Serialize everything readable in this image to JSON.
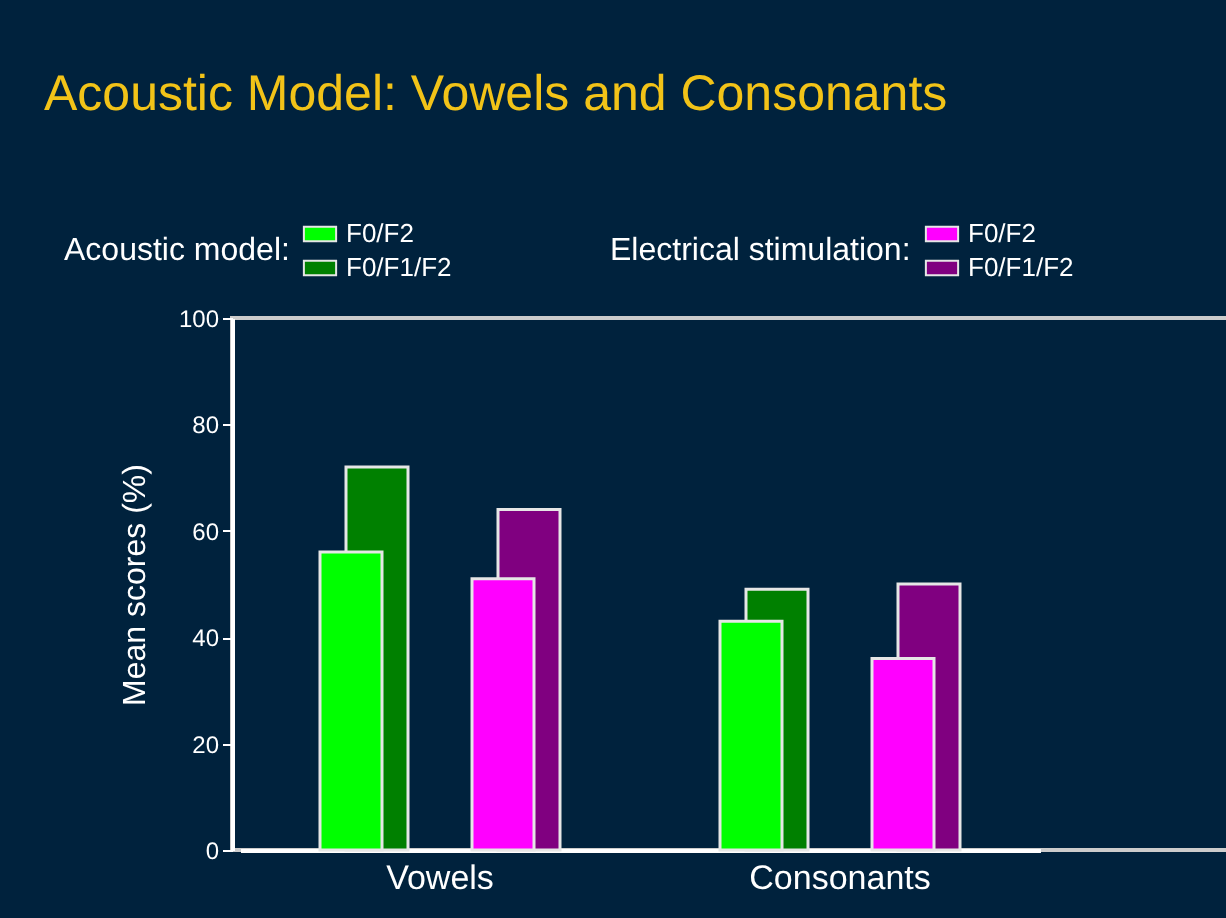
{
  "chart_data": {
    "type": "bar",
    "title": "Acoustic Model: Vowels and Consonants",
    "ylabel": "Mean scores (%)",
    "categories": [
      "Vowels",
      "Consonants"
    ],
    "series": [
      {
        "name": "F0/F2",
        "color": "#00ff00",
        "values": [
          56,
          43
        ]
      },
      {
        "name": "F0/F1/F2",
        "color": "#008000",
        "values": [
          72,
          49
        ]
      },
      {
        "name": "F0/F2",
        "color": "#ff00ff",
        "values": [
          51,
          36
        ]
      },
      {
        "name": "F0/F1/F2",
        "color": "#800080",
        "values": [
          64,
          50
        ]
      }
    ],
    "annotations": [
      "Acoustic model:",
      "Electrical stimulation:"
    ],
    "ylim": [
      0,
      100
    ],
    "yticks": [
      0,
      20,
      40,
      60,
      80,
      100
    ],
    "legend": "top"
  }
}
